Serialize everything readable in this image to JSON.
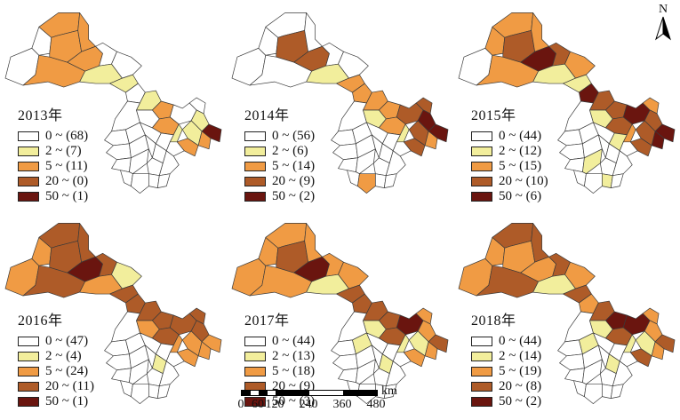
{
  "palette": {
    "class0": "#FFFFFF",
    "class1": "#F2EE9C",
    "class2": "#F09B44",
    "class3": "#AE5B28",
    "class4": "#6A150F"
  },
  "north_arrow": {
    "label": "N"
  },
  "scale_bar": {
    "tick_labels": [
      "0",
      "60",
      "120",
      "240",
      "360",
      "480"
    ],
    "tick_km": [
      0,
      60,
      120,
      240,
      360,
      480
    ],
    "unit": "km"
  },
  "maps": [
    {
      "year_label": "2013年",
      "legend": [
        {
          "break": "0",
          "count": 68,
          "label": "0 ~ (68)"
        },
        {
          "break": "2",
          "count": 7,
          "label": "2 ~ (7)"
        },
        {
          "break": "5",
          "count": 11,
          "label": "5 ~ (11)"
        },
        {
          "break": "20",
          "count": 0,
          "label": "20 ~ (0)"
        },
        {
          "break": "50",
          "count": 1,
          "label": "50 ~ (1)"
        }
      ],
      "region_classes": [
        0,
        0,
        2,
        2,
        2,
        2,
        0,
        2,
        0,
        1,
        1,
        0,
        1,
        2,
        0,
        0,
        2,
        0,
        1,
        4,
        1,
        2,
        2,
        1,
        0,
        0,
        0,
        0,
        0,
        0,
        0,
        0,
        0,
        0,
        0,
        0,
        0,
        0,
        0,
        0,
        0,
        0
      ]
    },
    {
      "year_label": "2014年",
      "legend": [
        {
          "break": "0",
          "count": 56,
          "label": "0 ~ (56)"
        },
        {
          "break": "2",
          "count": 6,
          "label": "2 ~ (6)"
        },
        {
          "break": "5",
          "count": 14,
          "label": "5 ~ (14)"
        },
        {
          "break": "20",
          "count": 9,
          "label": "20 ~ (9)"
        },
        {
          "break": "50",
          "count": 2,
          "label": "50 ~ (2)"
        }
      ],
      "region_classes": [
        0,
        0,
        0,
        3,
        0,
        3,
        0,
        0,
        0,
        1,
        2,
        2,
        2,
        2,
        1,
        3,
        2,
        3,
        4,
        4,
        3,
        2,
        3,
        1,
        0,
        0,
        0,
        0,
        0,
        0,
        0,
        0,
        0,
        0,
        0,
        0,
        0,
        0,
        2,
        0,
        0,
        0
      ]
    },
    {
      "year_label": "2015年",
      "legend": [
        {
          "break": "0",
          "count": 44,
          "label": "0 ~ (44)"
        },
        {
          "break": "2",
          "count": 12,
          "label": "2 ~ (12)"
        },
        {
          "break": "5",
          "count": 15,
          "label": "5 ~ (15)"
        },
        {
          "break": "20",
          "count": 10,
          "label": "20 ~ (10)"
        },
        {
          "break": "50",
          "count": 6,
          "label": "50 ~ (6)"
        }
      ],
      "region_classes": [
        0,
        2,
        2,
        3,
        2,
        4,
        3,
        2,
        2,
        1,
        1,
        4,
        3,
        3,
        1,
        4,
        3,
        2,
        3,
        4,
        3,
        4,
        3,
        2,
        0,
        0,
        0,
        0,
        1,
        0,
        0,
        0,
        0,
        0,
        1,
        0,
        0,
        0,
        0,
        1,
        0,
        0
      ]
    },
    {
      "year_label": "2016年",
      "legend": [
        {
          "break": "0",
          "count": 47,
          "label": "0 ~ (47)"
        },
        {
          "break": "2",
          "count": 4,
          "label": "2 ~ (4)"
        },
        {
          "break": "5",
          "count": 24,
          "label": "5 ~ (24)"
        },
        {
          "break": "20",
          "count": 11,
          "label": "20 ~ (11)"
        },
        {
          "break": "50",
          "count": 1,
          "label": "50 ~ (1)"
        }
      ],
      "region_classes": [
        2,
        2,
        3,
        3,
        3,
        4,
        3,
        3,
        1,
        2,
        3,
        3,
        3,
        3,
        2,
        3,
        3,
        3,
        3,
        2,
        2,
        2,
        2,
        2,
        0,
        0,
        0,
        0,
        0,
        0,
        0,
        0,
        1,
        0,
        0,
        0,
        0,
        0,
        0,
        0,
        0,
        0
      ]
    },
    {
      "year_label": "2017年",
      "legend": [
        {
          "break": "0",
          "count": 44,
          "label": "0 ~ (44)"
        },
        {
          "break": "2",
          "count": 13,
          "label": "2 ~ (13)"
        },
        {
          "break": "5",
          "count": 18,
          "label": "5 ~ (18)"
        },
        {
          "break": "20",
          "count": 9,
          "label": "20 ~ (9)"
        },
        {
          "break": "50",
          "count": 3,
          "label": "50 ~ (3)"
        }
      ],
      "region_classes": [
        2,
        2,
        2,
        3,
        2,
        4,
        2,
        2,
        2,
        1,
        3,
        3,
        3,
        3,
        1,
        4,
        3,
        2,
        2,
        3,
        1,
        2,
        2,
        1,
        0,
        0,
        1,
        0,
        0,
        0,
        0,
        0,
        1,
        0,
        0,
        0,
        0,
        0,
        0,
        0,
        0,
        0
      ]
    },
    {
      "year_label": "2018年",
      "legend": [
        {
          "break": "0",
          "count": 44,
          "label": "0 ~ (44)"
        },
        {
          "break": "2",
          "count": 14,
          "label": "2 ~ (14)"
        },
        {
          "break": "5",
          "count": 19,
          "label": "5 ~ (19)"
        },
        {
          "break": "20",
          "count": 8,
          "label": "20 ~ (8)"
        },
        {
          "break": "50",
          "count": 2,
          "label": "50 ~ (2)"
        }
      ],
      "region_classes": [
        2,
        2,
        3,
        2,
        3,
        2,
        3,
        3,
        2,
        1,
        3,
        2,
        3,
        4,
        1,
        4,
        3,
        2,
        2,
        3,
        1,
        2,
        3,
        1,
        0,
        0,
        1,
        0,
        0,
        0,
        0,
        0,
        1,
        0,
        0,
        0,
        0,
        0,
        0,
        0,
        0,
        0
      ]
    }
  ]
}
